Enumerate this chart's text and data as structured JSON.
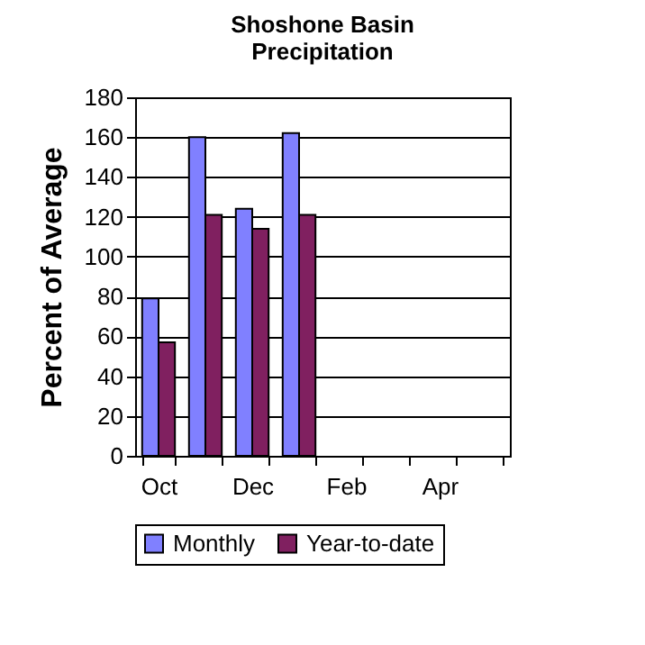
{
  "chart_data": {
    "type": "bar",
    "title": "Shoshone Basin Precipitation",
    "ylabel": "Percent of Average",
    "categories": [
      "Oct",
      null,
      "Dec",
      null,
      "Feb",
      null,
      "Apr",
      null
    ],
    "series": [
      {
        "name": "Monthly",
        "color": "#8080ff",
        "values": [
          79,
          160,
          124,
          162,
          null,
          null,
          null,
          null
        ]
      },
      {
        "name": "Year-to-date",
        "color": "#802060",
        "values": [
          57,
          121,
          114,
          121,
          null,
          null,
          null,
          null
        ]
      }
    ],
    "ylim": [
      0,
      180
    ],
    "yticks": [
      0,
      20,
      40,
      60,
      80,
      100,
      120,
      140,
      160,
      180
    ],
    "grid": "y",
    "legend": "bottom"
  }
}
